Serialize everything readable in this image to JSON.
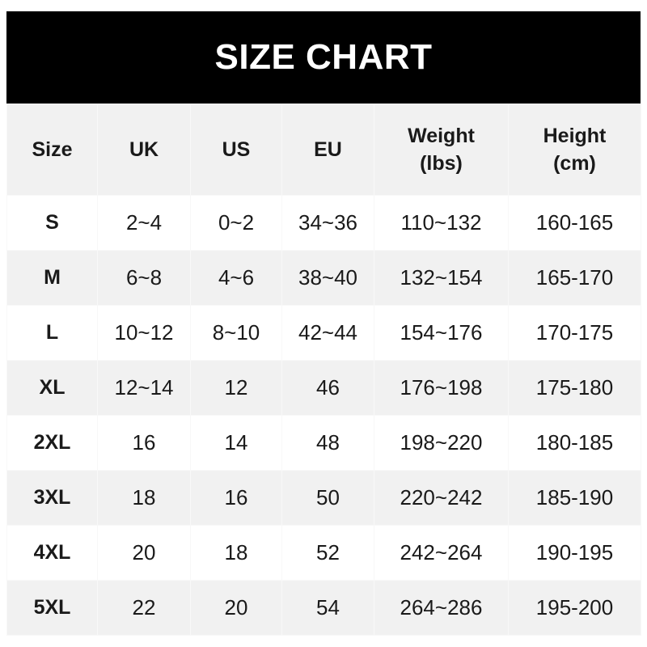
{
  "title": "SIZE CHART",
  "headers": [
    {
      "line1": "Size",
      "line2": ""
    },
    {
      "line1": "UK",
      "line2": ""
    },
    {
      "line1": "US",
      "line2": ""
    },
    {
      "line1": "EU",
      "line2": ""
    },
    {
      "line1": "Weight",
      "line2": "(lbs)"
    },
    {
      "line1": "Height",
      "line2": "(cm)"
    }
  ],
  "rows": [
    [
      "S",
      "2~4",
      "0~2",
      "34~36",
      "110~132",
      "160-165"
    ],
    [
      "M",
      "6~8",
      "4~6",
      "38~40",
      "132~154",
      "165-170"
    ],
    [
      "L",
      "10~12",
      "8~10",
      "42~44",
      "154~176",
      "170-175"
    ],
    [
      "XL",
      "12~14",
      "12",
      "46",
      "176~198",
      "175-180"
    ],
    [
      "2XL",
      "16",
      "14",
      "48",
      "198~220",
      "180-185"
    ],
    [
      "3XL",
      "18",
      "16",
      "50",
      "220~242",
      "185-190"
    ],
    [
      "4XL",
      "20",
      "18",
      "52",
      "242~264",
      "190-195"
    ],
    [
      "5XL",
      "22",
      "20",
      "54",
      "264~286",
      "195-200"
    ]
  ]
}
